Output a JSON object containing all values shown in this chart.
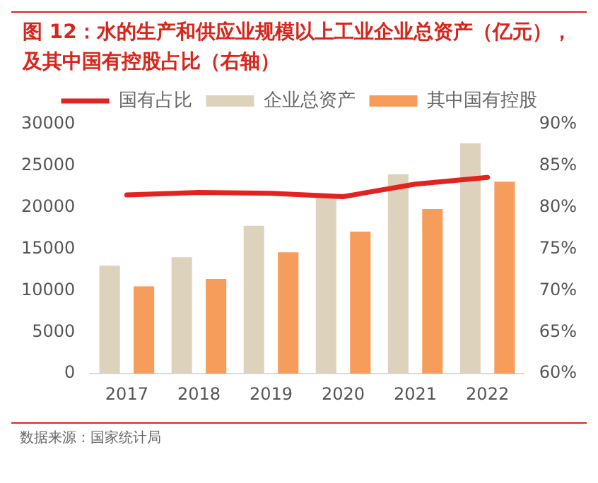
{
  "chart_data": {
    "type": "bar",
    "title": "图 12：水的生产和供应业规模以上工业企业总资产（亿元），及其中国有控股占比（右轴）",
    "categories": [
      "2017",
      "2018",
      "2019",
      "2020",
      "2021",
      "2022"
    ],
    "series": [
      {
        "name": "企业总资产",
        "color": "#ddd3bd",
        "values": [
          13000,
          14000,
          17800,
          21300,
          24000,
          27700
        ]
      },
      {
        "name": "其中国有控股",
        "color": "#f79d5c",
        "values": [
          10500,
          11400,
          14600,
          17100,
          19800,
          23100
        ]
      },
      {
        "name": "国有占比",
        "type": "line",
        "axis": "y2",
        "color": "#e3231f",
        "values": [
          81.5,
          81.8,
          81.7,
          81.3,
          82.8,
          83.6
        ]
      }
    ],
    "ylim": [
      0,
      30000
    ],
    "yticks": [
      0,
      5000,
      10000,
      15000,
      20000,
      25000,
      30000
    ],
    "y2lim": [
      60,
      90
    ],
    "y2ticks": [
      {
        "value": 60,
        "label": "60%"
      },
      {
        "value": 65,
        "label": "65%"
      },
      {
        "value": 70,
        "label": "70%"
      },
      {
        "value": 75,
        "label": "75%"
      },
      {
        "value": 80,
        "label": "80%"
      },
      {
        "value": 85,
        "label": "85%"
      },
      {
        "value": 90,
        "label": "90%"
      }
    ],
    "grid": false,
    "legend": "top",
    "marker": "none",
    "annotations": [
      "数据来源：国家统计局"
    ]
  }
}
